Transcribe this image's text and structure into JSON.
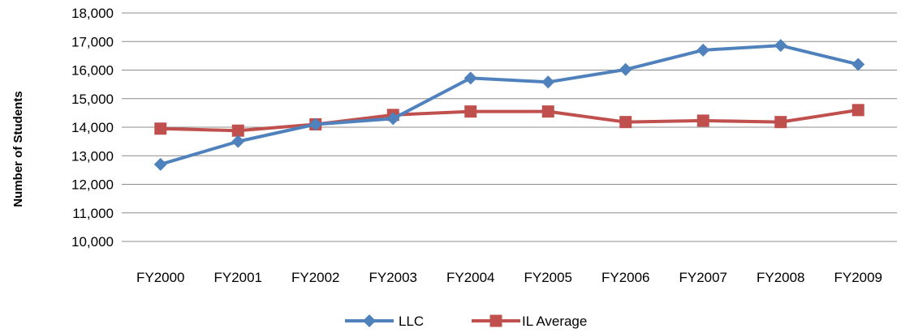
{
  "chart_data": {
    "type": "line",
    "title": "",
    "xlabel": "",
    "ylabel": "Number of Students",
    "ylim": [
      10000,
      18000
    ],
    "y_ticks": [
      10000,
      11000,
      12000,
      13000,
      14000,
      15000,
      16000,
      17000,
      18000
    ],
    "y_tick_labels": [
      "10,000",
      "11,000",
      "12,000",
      "13,000",
      "14,000",
      "15,000",
      "16,000",
      "17,000",
      "18,000"
    ],
    "grid": true,
    "legend_position": "bottom",
    "categories": [
      "FY2000",
      "FY2001",
      "FY2002",
      "FY2003",
      "FY2004",
      "FY2005",
      "FY2006",
      "FY2007",
      "FY2008",
      "FY2009"
    ],
    "series": [
      {
        "name": "LLC",
        "color": "#4F81BD",
        "marker": "diamond",
        "values": [
          12700,
          13500,
          14100,
          14300,
          15720,
          15580,
          16020,
          16700,
          16860,
          16200
        ]
      },
      {
        "name": "IL Average",
        "color": "#C0504D",
        "marker": "square",
        "values": [
          13950,
          13880,
          14100,
          14430,
          14550,
          14550,
          14180,
          14230,
          14180,
          14600
        ]
      }
    ]
  }
}
